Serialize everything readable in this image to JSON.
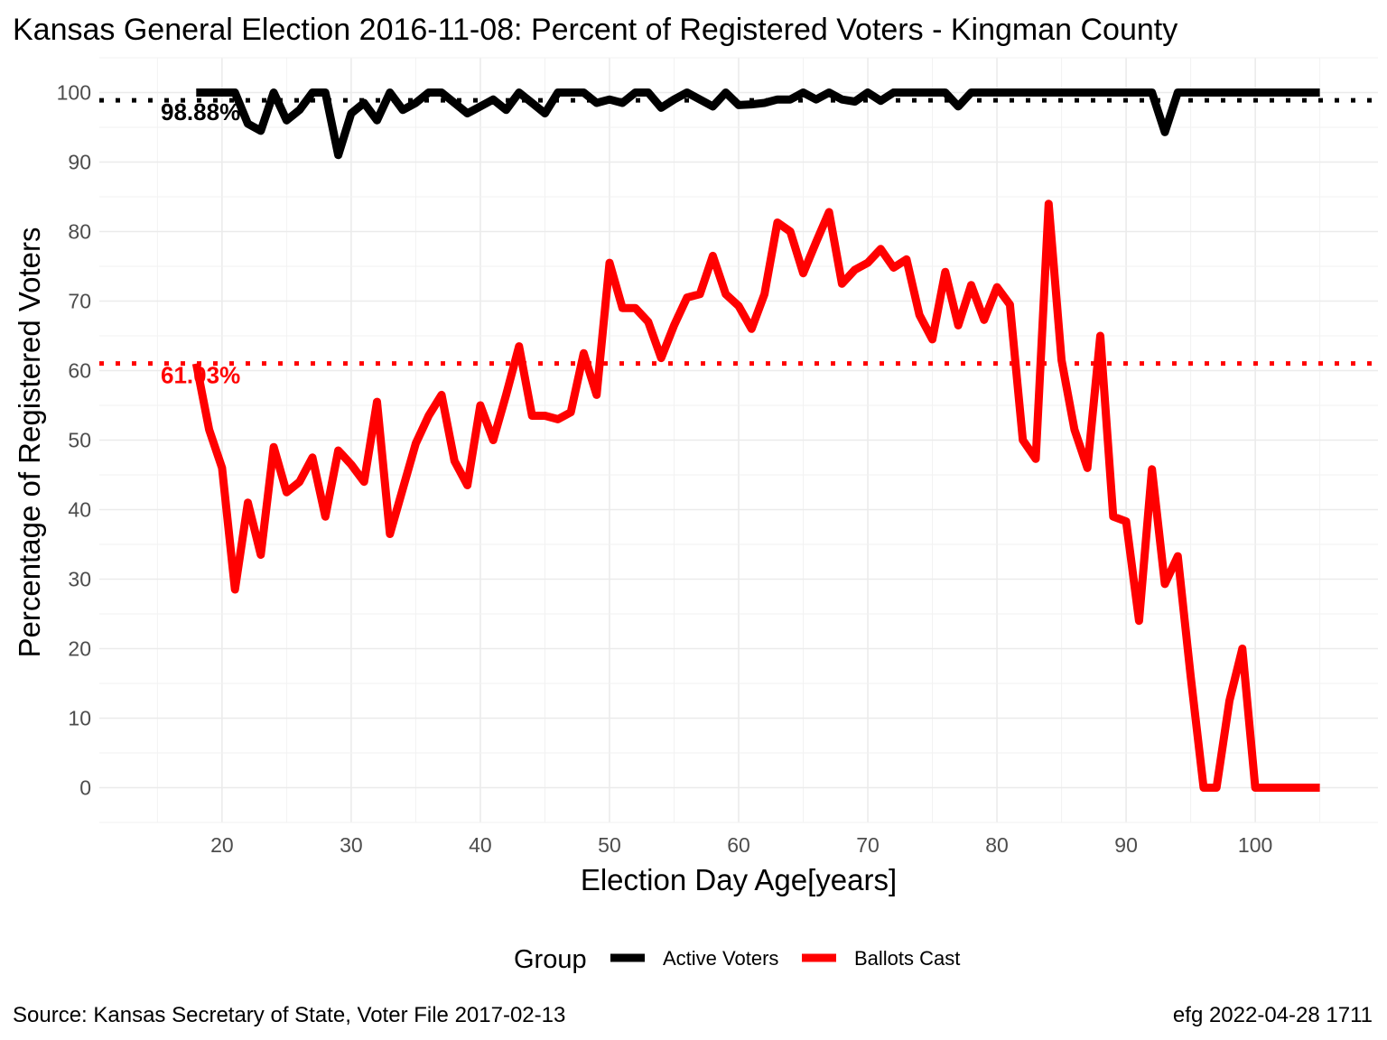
{
  "title": "Kansas General Election 2016-11-08:  Percent of Registered Voters - Kingman County",
  "caption_left": "Source:  Kansas Secretary of State, Voter File  2017-02-13",
  "caption_right": "efg 2022-04-28 1711",
  "chart_data": {
    "type": "line",
    "xlabel": "Election Day Age[years]",
    "ylabel": "Percentage of Registered Voters",
    "xlim": [
      10.5,
      109.5
    ],
    "ylim": [
      -5,
      105
    ],
    "x_ticks": [
      20,
      30,
      40,
      50,
      60,
      70,
      80,
      90,
      100
    ],
    "y_ticks": [
      0,
      10,
      20,
      30,
      40,
      50,
      60,
      70,
      80,
      90,
      100
    ],
    "x_tick_labels": [
      "20",
      "30",
      "40",
      "50",
      "60",
      "70",
      "80",
      "90",
      "100"
    ],
    "y_tick_labels": [
      "0",
      "10",
      "20",
      "30",
      "40",
      "50",
      "60",
      "70",
      "80",
      "90",
      "100"
    ],
    "grid": true,
    "legend": {
      "title": "Group",
      "position": "bottom"
    },
    "reference_lines": [
      {
        "value": 98.88,
        "label": "98.88%",
        "color": "#000000"
      },
      {
        "value": 61.03,
        "label": "61.03%",
        "color": "#ff0000"
      }
    ],
    "series": [
      {
        "name": "Active Voters",
        "color": "#000000",
        "x": [
          18,
          19,
          20,
          21,
          22,
          23,
          24,
          25,
          26,
          27,
          28,
          29,
          30,
          31,
          32,
          33,
          34,
          35,
          36,
          37,
          38,
          39,
          40,
          41,
          42,
          43,
          44,
          45,
          46,
          47,
          48,
          49,
          50,
          51,
          52,
          53,
          54,
          55,
          56,
          57,
          58,
          59,
          60,
          61,
          62,
          63,
          64,
          65,
          66,
          67,
          68,
          69,
          70,
          71,
          72,
          73,
          74,
          75,
          76,
          77,
          78,
          79,
          80,
          81,
          82,
          83,
          84,
          85,
          86,
          87,
          88,
          89,
          90,
          91,
          92,
          93,
          94,
          95,
          96,
          97,
          98,
          99,
          100,
          101,
          102,
          103,
          104,
          105
        ],
        "values": [
          100,
          100,
          100,
          100,
          95.5,
          94.5,
          100,
          96,
          97.5,
          100,
          100,
          91,
          97,
          98.5,
          96,
          100,
          97.5,
          98.5,
          100,
          100,
          98.5,
          97,
          98,
          99,
          97.5,
          100,
          98.5,
          97,
          100,
          100,
          100,
          98.5,
          99,
          98.5,
          100,
          100,
          97.8,
          99,
          100,
          99,
          98,
          100,
          98.2,
          98.3,
          98.5,
          99,
          99,
          100,
          99,
          100,
          99,
          98.7,
          100,
          98.8,
          100,
          100,
          100,
          100,
          100,
          98,
          100,
          100,
          100,
          100,
          100,
          100,
          100,
          100,
          100,
          100,
          100,
          100,
          100,
          100,
          100,
          94.3,
          100,
          100,
          100,
          100,
          100,
          100,
          100,
          100,
          100,
          100,
          100,
          100
        ]
      },
      {
        "name": "Ballots Cast",
        "color": "#ff0000",
        "x": [
          18,
          19,
          20,
          21,
          22,
          23,
          24,
          25,
          26,
          27,
          28,
          29,
          30,
          31,
          32,
          33,
          34,
          35,
          36,
          37,
          38,
          39,
          40,
          41,
          42,
          43,
          44,
          45,
          46,
          47,
          48,
          49,
          50,
          51,
          52,
          53,
          54,
          55,
          56,
          57,
          58,
          59,
          60,
          61,
          62,
          63,
          64,
          65,
          66,
          67,
          68,
          69,
          70,
          71,
          72,
          73,
          74,
          75,
          76,
          77,
          78,
          79,
          80,
          81,
          82,
          83,
          84,
          85,
          86,
          87,
          88,
          89,
          90,
          91,
          92,
          93,
          94,
          95,
          96,
          97,
          98,
          99,
          100,
          101,
          102,
          103,
          104,
          105
        ],
        "values": [
          61,
          51.5,
          46,
          28.5,
          41,
          33.5,
          49,
          42.5,
          44,
          47.5,
          39,
          48.5,
          46.5,
          44,
          55.5,
          36.5,
          43,
          49.5,
          53.5,
          56.5,
          47,
          43.5,
          55,
          50,
          56.5,
          63.5,
          53.5,
          53.5,
          53,
          54,
          62.5,
          56.5,
          75.5,
          69,
          69,
          67,
          61.8,
          66.5,
          70.5,
          71,
          76.5,
          71,
          69.3,
          66,
          71,
          81.3,
          80,
          74,
          78.5,
          82.8,
          72.5,
          74.5,
          75.5,
          77.5,
          74.8,
          76,
          68,
          64.5,
          74.2,
          66.5,
          72.3,
          67.3,
          72,
          69.5,
          50,
          47.3,
          84,
          61.5,
          51.5,
          46,
          65,
          39,
          38.3,
          24,
          45.8,
          29.3,
          33.3,
          16,
          0,
          0,
          12.5,
          20,
          0,
          0,
          0,
          0,
          0,
          0
        ]
      }
    ]
  }
}
